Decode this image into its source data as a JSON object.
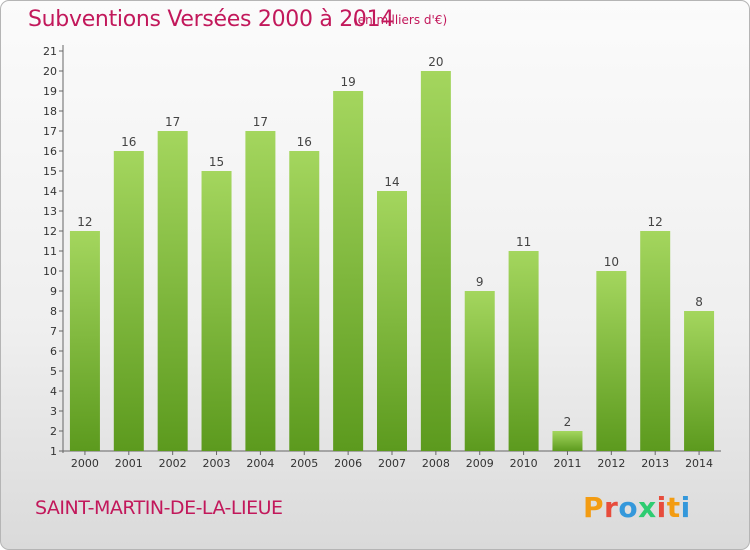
{
  "header": {
    "title": "Subventions Versées 2000 à 2014",
    "subtitle": "(en milliers d'€)"
  },
  "footer": {
    "commune": "SAINT-MARTIN-DE-LA-LIEUE",
    "logo_text": "Proxiti",
    "logo_colors": [
      "#f39c12",
      "#e74c3c",
      "#3498db",
      "#2ecc71",
      "#e74c3c",
      "#f39c12",
      "#3498db"
    ]
  },
  "colors": {
    "bar_top": "#a4d65e",
    "bar_bottom": "#5c9a1e",
    "title": "#c2185b"
  },
  "chart_data": {
    "type": "bar",
    "categories": [
      "2000",
      "2001",
      "2002",
      "2003",
      "2004",
      "2005",
      "2006",
      "2007",
      "2008",
      "2009",
      "2010",
      "2011",
      "2012",
      "2013",
      "2014"
    ],
    "values": [
      12,
      16,
      17,
      15,
      17,
      16,
      19,
      14,
      20,
      9,
      11,
      2,
      10,
      12,
      8
    ],
    "ylim": [
      1,
      21
    ],
    "yticks": [
      1,
      2,
      3,
      4,
      5,
      6,
      7,
      8,
      9,
      10,
      11,
      12,
      13,
      14,
      15,
      16,
      17,
      18,
      19,
      20,
      21
    ],
    "grid": false,
    "data_labels": true
  }
}
